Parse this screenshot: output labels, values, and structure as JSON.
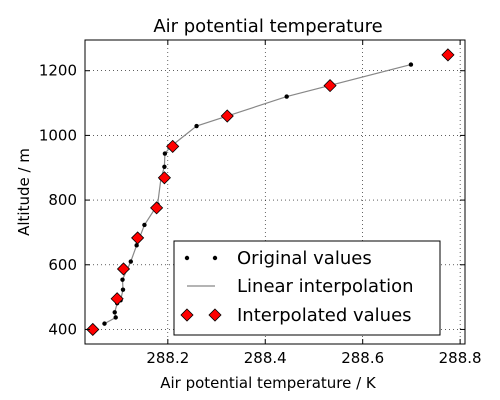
{
  "chart_data": {
    "type": "line",
    "title": "Air potential temperature",
    "xlabel": "Air potential temperature / K",
    "ylabel": "Altitude / m",
    "xlim": [
      288.03,
      288.81
    ],
    "ylim": [
      355,
      1295
    ],
    "xticks": [
      288.2,
      288.4,
      288.6,
      288.8
    ],
    "xtick_labels": [
      "288.2",
      "288.4",
      "288.6",
      "288.8"
    ],
    "yticks": [
      400,
      600,
      800,
      1000,
      1200
    ],
    "ytick_labels": [
      "400",
      "600",
      "800",
      "1000",
      "1200"
    ],
    "grid": true,
    "legend_position": "lower-right",
    "series": [
      {
        "name": "Original values",
        "style": "points",
        "color": "#000000",
        "x": [
          288.07,
          288.093,
          288.091,
          288.096,
          288.103,
          288.108,
          288.107,
          288.124,
          288.136,
          288.152,
          288.179,
          288.186,
          288.193,
          288.194,
          288.207,
          288.259,
          288.444,
          288.699
        ],
        "y": [
          418,
          437,
          453,
          481,
          490,
          523,
          554,
          610,
          660,
          723,
          786,
          868,
          903,
          944,
          967,
          1029,
          1120,
          1219
        ]
      },
      {
        "name": "Linear interpolation",
        "style": "line",
        "color": "#888888",
        "x": [
          288.07,
          288.093,
          288.091,
          288.096,
          288.103,
          288.108,
          288.107,
          288.124,
          288.136,
          288.152,
          288.179,
          288.186,
          288.193,
          288.194,
          288.207,
          288.259,
          288.444,
          288.699
        ],
        "y": [
          418,
          437,
          453,
          481,
          490,
          523,
          554,
          610,
          660,
          723,
          786,
          868,
          903,
          944,
          967,
          1029,
          1120,
          1219
        ]
      },
      {
        "name": "Interpolated values",
        "style": "diamonds",
        "color": "#ff0000",
        "x": [
          288.046,
          288.096,
          288.109,
          288.138,
          288.177,
          288.193,
          288.21,
          288.322,
          288.533,
          288.775
        ],
        "y": [
          400,
          495,
          587,
          683,
          776,
          869,
          966,
          1060,
          1154,
          1249
        ]
      }
    ]
  }
}
